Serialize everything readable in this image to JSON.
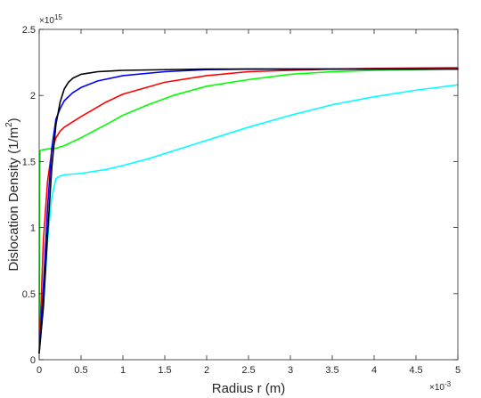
{
  "chart_data": {
    "type": "line",
    "title": "",
    "xlabel": "Radius r (m)",
    "ylabel_main": "Dislocation Density (1/m",
    "ylabel_sup": "2",
    "ylabel_close": ")",
    "x_exponent_base": "×10",
    "x_exponent_power": "-3",
    "y_exponent_base": "×10",
    "y_exponent_power": "15",
    "xlim": [
      0,
      5
    ],
    "ylim": [
      0,
      2.5
    ],
    "x_ticks": [
      0,
      0.5,
      1,
      1.5,
      2,
      2.5,
      3,
      3.5,
      4,
      4.5,
      5
    ],
    "x_tick_labels": [
      "0",
      "0.5",
      "1",
      "1.5",
      "2",
      "2.5",
      "3",
      "3.5",
      "4",
      "4.5",
      "5"
    ],
    "y_ticks": [
      0,
      0.5,
      1,
      1.5,
      2,
      2.5
    ],
    "y_tick_labels": [
      "0",
      "0.5",
      "1",
      "1.5",
      "2",
      "2.5"
    ],
    "grid": false,
    "series": [
      {
        "color": "#00ffff",
        "x": [
          0,
          0.05,
          0.1,
          0.15,
          0.2,
          0.25,
          0.3,
          0.5,
          0.8,
          1.0,
          1.3,
          1.6,
          2.0,
          2.5,
          3.0,
          3.5,
          4.0,
          4.5,
          5.0
        ],
        "y": [
          0.05,
          0.4,
          0.9,
          1.23,
          1.37,
          1.39,
          1.4,
          1.41,
          1.44,
          1.47,
          1.52,
          1.58,
          1.66,
          1.76,
          1.85,
          1.93,
          1.99,
          2.04,
          2.08
        ]
      },
      {
        "color": "#00ff00",
        "x": [
          0,
          0.005,
          0.01,
          0.02,
          0.05,
          0.1,
          0.2,
          0.3,
          0.5,
          0.8,
          1.0,
          1.3,
          1.6,
          2.0,
          2.5,
          3.0,
          3.5,
          4.0,
          4.5,
          5.0
        ],
        "y": [
          0.05,
          1.2,
          1.58,
          1.585,
          1.59,
          1.595,
          1.6,
          1.62,
          1.68,
          1.78,
          1.85,
          1.93,
          2.0,
          2.07,
          2.12,
          2.16,
          2.18,
          2.19,
          2.195,
          2.2
        ]
      },
      {
        "color": "#ff0000",
        "x": [
          0,
          0.05,
          0.1,
          0.15,
          0.2,
          0.25,
          0.3,
          0.5,
          0.8,
          1.0,
          1.5,
          2.0,
          2.5,
          3.0,
          3.5,
          4.0,
          5.0
        ],
        "y": [
          0.05,
          0.9,
          1.35,
          1.58,
          1.68,
          1.73,
          1.76,
          1.84,
          1.95,
          2.01,
          2.1,
          2.15,
          2.18,
          2.19,
          2.2,
          2.205,
          2.21
        ]
      },
      {
        "color": "#0000ff",
        "x": [
          0,
          0.05,
          0.1,
          0.15,
          0.2,
          0.25,
          0.3,
          0.4,
          0.5,
          0.7,
          1.0,
          1.5,
          2.0,
          2.5,
          3.0,
          4.0,
          5.0
        ],
        "y": [
          0.05,
          0.55,
          1.15,
          1.6,
          1.82,
          1.9,
          1.96,
          2.02,
          2.06,
          2.11,
          2.15,
          2.18,
          2.195,
          2.2,
          2.2,
          2.2,
          2.2
        ]
      },
      {
        "color": "#000000",
        "x": [
          0,
          0.05,
          0.1,
          0.15,
          0.2,
          0.25,
          0.3,
          0.35,
          0.4,
          0.5,
          0.7,
          1.0,
          1.5,
          2.0,
          3.0,
          5.0
        ],
        "y": [
          0.05,
          0.4,
          0.95,
          1.45,
          1.78,
          1.95,
          2.05,
          2.1,
          2.13,
          2.16,
          2.18,
          2.19,
          2.195,
          2.2,
          2.2,
          2.2
        ]
      }
    ]
  }
}
